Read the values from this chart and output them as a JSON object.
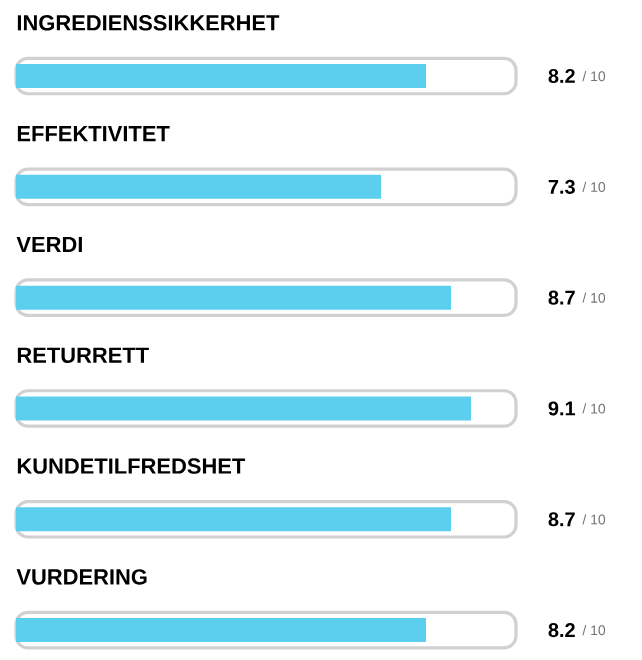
{
  "chart_data": {
    "type": "bar",
    "orientation": "horizontal",
    "categories": [
      "INGREDIENSSIKKERHET",
      "EFFEKTIVITET",
      "VERDI",
      "RETURRETT",
      "KUNDETILFREDSHET",
      "VURDERING"
    ],
    "values": [
      8.2,
      7.3,
      8.7,
      9.1,
      8.7,
      8.2
    ],
    "data_labels": true,
    "annotations": [
      "/ 10",
      "/ 10",
      "/ 10",
      "/ 10",
      "/ 10",
      "/ 10"
    ],
    "xlim": [
      0,
      10
    ],
    "color": "#5dcfee",
    "tick_labels": false
  }
}
